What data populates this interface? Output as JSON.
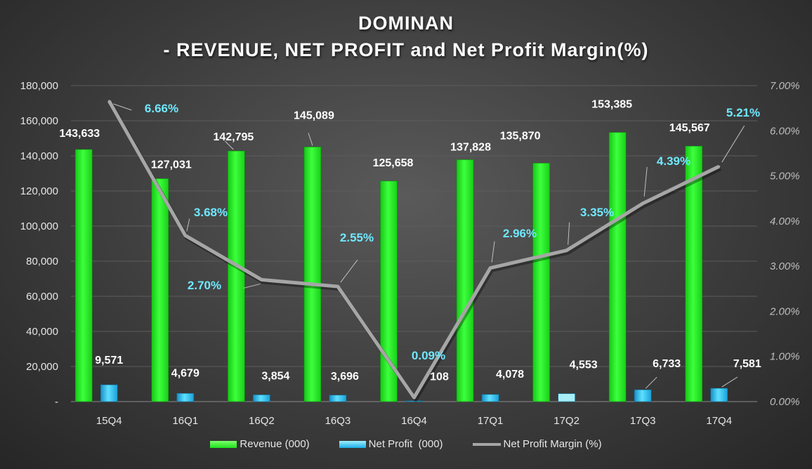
{
  "title_line1": "DOMINAN",
  "title_line2": "- REVENUE, NET PROFIT and Net Profit Margin(%)",
  "colors": {
    "revenue": "#1ee81e",
    "net_profit": "#1aaee6",
    "margin_line": "#a6a6a6",
    "margin_label": "#6fe8ff",
    "background": "#3b3b3b"
  },
  "legend": {
    "revenue": "Revenue (000)",
    "net_profit": "Net Profit  (000)",
    "margin": "Net Profit Margin (%)"
  },
  "chart_data": {
    "type": "bar",
    "categories": [
      "15Q4",
      "16Q1",
      "16Q2",
      "16Q3",
      "16Q4",
      "17Q1",
      "17Q2",
      "17Q3",
      "17Q4"
    ],
    "series": [
      {
        "name": "Revenue (000)",
        "type": "bar",
        "axis": "left",
        "values": [
          143633,
          127031,
          142795,
          145089,
          125658,
          137828,
          135870,
          153385,
          145567
        ],
        "labels": [
          "143,633",
          "127,031",
          "142,795",
          "145,089",
          "125,658",
          "137,828",
          "135,870",
          "153,385",
          "145,567"
        ]
      },
      {
        "name": "Net Profit  (000)",
        "type": "bar",
        "axis": "left",
        "values": [
          9571,
          4679,
          3854,
          3696,
          108,
          4078,
          4553,
          6733,
          7581
        ],
        "labels": [
          "9,571",
          "4,679",
          "3,854",
          "3,696",
          "108",
          "4,078",
          "4,553",
          "6,733",
          "7,581"
        ]
      },
      {
        "name": "Net Profit Margin (%)",
        "type": "line",
        "axis": "right",
        "values": [
          6.66,
          3.68,
          2.7,
          2.55,
          0.09,
          2.96,
          3.35,
          4.39,
          5.21
        ],
        "labels": [
          "6.66%",
          "3.68%",
          "2.70%",
          "2.55%",
          "0.09%",
          "2.96%",
          "3.35%",
          "4.39%",
          "5.21%"
        ]
      }
    ],
    "y_left": {
      "min": 0,
      "max": 180000,
      "ticks": [
        0,
        20000,
        40000,
        60000,
        80000,
        100000,
        120000,
        140000,
        160000,
        180000
      ],
      "tick_labels": [
        "-",
        "20,000",
        "40,000",
        "60,000",
        "80,000",
        "100,000",
        "120,000",
        "140,000",
        "160,000",
        "180,000"
      ]
    },
    "y_right": {
      "min": 0,
      "max": 7,
      "ticks": [
        0,
        1,
        2,
        3,
        4,
        5,
        6,
        7
      ],
      "tick_labels": [
        "0.00%",
        "1.00%",
        "2.00%",
        "3.00%",
        "4.00%",
        "5.00%",
        "6.00%",
        "7.00%"
      ]
    },
    "grid": "horizontal",
    "legend_position": "bottom"
  }
}
